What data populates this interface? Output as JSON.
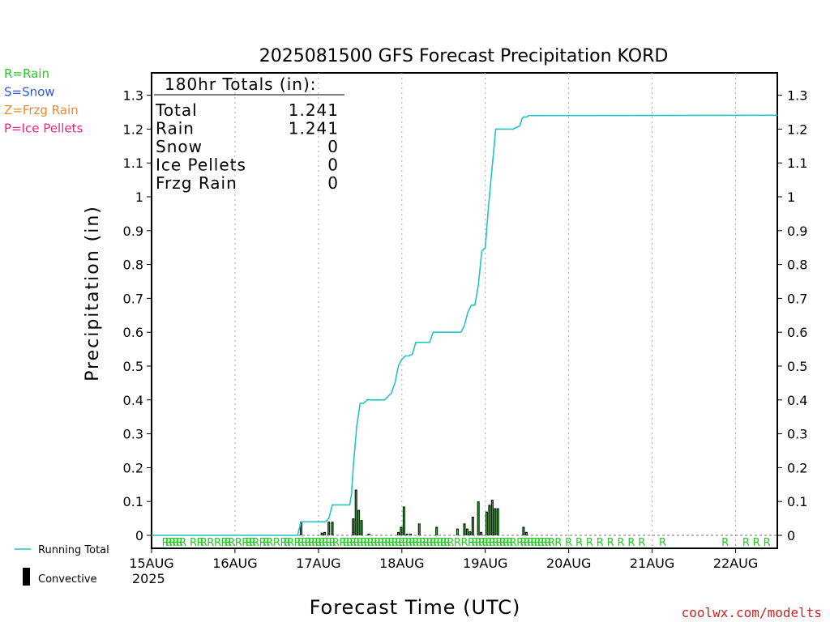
{
  "chart_data": {
    "type": "bar",
    "title": "2025081500 GFS Forecast Precipitation KORD",
    "xlabel": "Forecast Time (UTC)",
    "ylabel": "Precipitation (in)",
    "ylim": [
      0,
      1.35
    ],
    "yticks": [
      0,
      0.1,
      0.2,
      0.3,
      0.4,
      0.5,
      0.6,
      0.7,
      0.8,
      0.9,
      1,
      1.1,
      1.2,
      1.3
    ],
    "ytick_labels": [
      "0",
      "0.1",
      "0.2",
      "0.3",
      "0.4",
      "0.5",
      "0.6",
      "0.7",
      "0.8",
      "0.9",
      "1",
      "1.1",
      "1.2",
      "1.3"
    ],
    "xlim_hours": [
      0,
      180
    ],
    "x_ticks": [
      {
        "hour": 0,
        "label": "15AUG"
      },
      {
        "hour": 24,
        "label": "16AUG"
      },
      {
        "hour": 48,
        "label": "17AUG"
      },
      {
        "hour": 72,
        "label": "18AUG"
      },
      {
        "hour": 96,
        "label": "19AUG"
      },
      {
        "hour": 120,
        "label": "20AUG"
      },
      {
        "hour": 144,
        "label": "21AUG"
      },
      {
        "hour": 168,
        "label": "22AUG"
      }
    ],
    "year_label": "2025",
    "grid": "vertical dotted at day boundaries",
    "precip_type_legend": [
      {
        "label": "R=Rain",
        "color": "#22cc22"
      },
      {
        "label": "S=Snow",
        "color": "#3355dd"
      },
      {
        "label": "Z=Frzg Rain",
        "color": "#ee8833"
      },
      {
        "label": "P=Ice Pellets",
        "color": "#ee2288"
      }
    ],
    "series_legend": [
      {
        "label": "Running Total",
        "color": "#22c4c4"
      },
      {
        "label": "Convective",
        "color": "#000000"
      }
    ],
    "totals_box": {
      "header": "180hr Totals (in):",
      "rows": [
        {
          "name": "Total",
          "value": "1.241"
        },
        {
          "name": "Rain",
          "value": "1.241"
        },
        {
          "name": "Snow",
          "value": "0"
        },
        {
          "name": "Ice Pellets",
          "value": "0"
        },
        {
          "name": "Frzg Rain",
          "value": "0"
        }
      ]
    },
    "series": [
      {
        "name": "Running Total",
        "color": "#22c4c4",
        "points": [
          [
            0,
            0
          ],
          [
            42,
            0
          ],
          [
            43,
            0.04
          ],
          [
            50,
            0.04
          ],
          [
            51,
            0.05
          ],
          [
            52,
            0.09
          ],
          [
            57,
            0.09
          ],
          [
            57.5,
            0.12
          ],
          [
            58,
            0.2
          ],
          [
            59,
            0.32
          ],
          [
            60,
            0.39
          ],
          [
            61,
            0.39
          ],
          [
            62,
            0.4
          ],
          [
            67,
            0.4
          ],
          [
            68,
            0.41
          ],
          [
            69,
            0.42
          ],
          [
            70,
            0.45
          ],
          [
            71,
            0.5
          ],
          [
            72,
            0.52
          ],
          [
            73,
            0.53
          ],
          [
            74,
            0.53
          ],
          [
            75,
            0.535
          ],
          [
            76,
            0.57
          ],
          [
            80,
            0.57
          ],
          [
            81,
            0.6
          ],
          [
            89,
            0.6
          ],
          [
            90,
            0.62
          ],
          [
            91,
            0.66
          ],
          [
            92,
            0.68
          ],
          [
            93,
            0.68
          ],
          [
            94,
            0.74
          ],
          [
            95,
            0.84
          ],
          [
            96,
            0.85
          ],
          [
            97,
            0.98
          ],
          [
            98,
            1.09
          ],
          [
            99,
            1.2
          ],
          [
            104,
            1.2
          ],
          [
            105,
            1.205
          ],
          [
            106,
            1.21
          ],
          [
            106.5,
            1.23
          ],
          [
            107,
            1.236
          ],
          [
            108,
            1.236
          ],
          [
            108.5,
            1.24
          ],
          [
            180,
            1.241
          ]
        ]
      },
      {
        "name": "Precip",
        "hours": [
          43,
          49,
          49.8,
          51,
          52,
          58,
          58.8,
          59.6,
          60.4,
          62.5,
          71,
          71.8,
          72.6,
          73.5,
          74.5,
          77,
          82,
          88,
          90,
          90.8,
          91.6,
          92.4,
          94,
          94.8,
          96.4,
          97.2,
          98,
          98.8,
          99.6,
          107,
          107.8
        ],
        "values": [
          0.04,
          0.008,
          0.01,
          0.04,
          0.04,
          0.05,
          0.135,
          0.075,
          0.045,
          0.005,
          0.01,
          0.025,
          0.085,
          0.005,
          0.005,
          0.035,
          0.025,
          0.02,
          0.035,
          0.02,
          0.012,
          0.055,
          0.1,
          0.01,
          0.07,
          0.09,
          0.105,
          0.08,
          0.08,
          0.025,
          0.01
        ]
      }
    ],
    "precip_type_markers": {
      "letter": "R",
      "color": "#22cc22",
      "hours": [
        4,
        5,
        6,
        7,
        8,
        9,
        12,
        14,
        15,
        17,
        19,
        21,
        22,
        23,
        25,
        27,
        28,
        29,
        30,
        32,
        33,
        34,
        36,
        38,
        39,
        40,
        42,
        43,
        44,
        45,
        46,
        47,
        48,
        49,
        50,
        51,
        52,
        53,
        55,
        56,
        57,
        58,
        59,
        60,
        61,
        62,
        63,
        64,
        65,
        66,
        67,
        68,
        69,
        70,
        71,
        72,
        73,
        74,
        75,
        76,
        77,
        78,
        79,
        80,
        81,
        82,
        83,
        84,
        85,
        86,
        88,
        90,
        92,
        93,
        94,
        95,
        96,
        97,
        98,
        99,
        100,
        101,
        102,
        103,
        104,
        106,
        107,
        108,
        109,
        110,
        111,
        112,
        113,
        114,
        115,
        117,
        120,
        123,
        126,
        129,
        132,
        135,
        138,
        141,
        147,
        165,
        171,
        174,
        177
      ]
    },
    "watermark": "coolwx.com/modelts"
  }
}
